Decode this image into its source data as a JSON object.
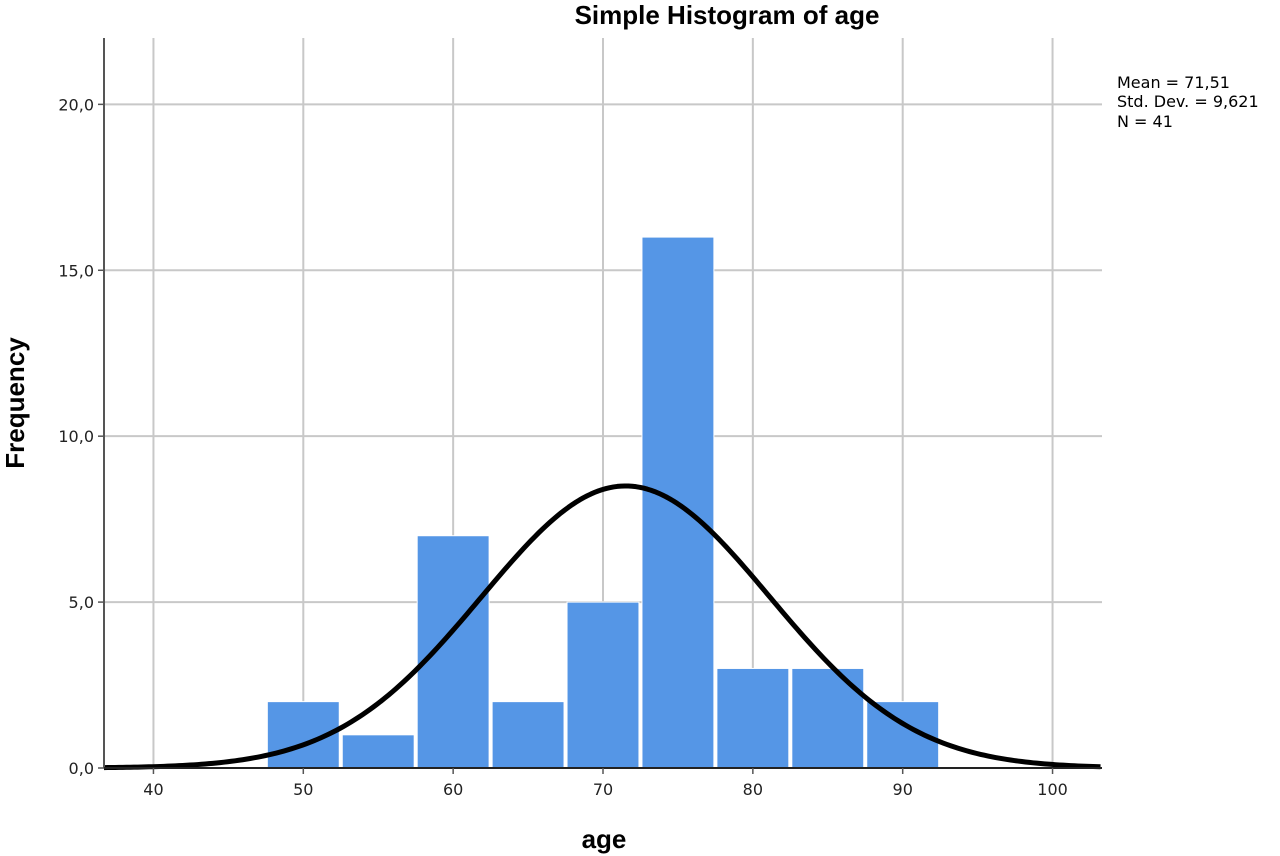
{
  "chart_data": {
    "type": "bar",
    "title": "Simple Histogram of age",
    "xlabel": "age",
    "ylabel": "Frequency",
    "bin_width": 5,
    "bins": [
      {
        "start": 47.5,
        "end": 52.5,
        "value": 2
      },
      {
        "start": 52.5,
        "end": 57.5,
        "value": 1
      },
      {
        "start": 57.5,
        "end": 62.5,
        "value": 7
      },
      {
        "start": 62.5,
        "end": 67.5,
        "value": 2
      },
      {
        "start": 67.5,
        "end": 72.5,
        "value": 5
      },
      {
        "start": 72.5,
        "end": 77.5,
        "value": 16
      },
      {
        "start": 77.5,
        "end": 82.5,
        "value": 3
      },
      {
        "start": 82.5,
        "end": 87.5,
        "value": 3
      },
      {
        "start": 87.5,
        "end": 92.5,
        "value": 2
      }
    ],
    "xlim": [
      36.7,
      103.3
    ],
    "ylim": [
      0,
      22
    ],
    "x_ticks": [
      40,
      50,
      60,
      70,
      80,
      90,
      100
    ],
    "x_tick_labels": [
      "40",
      "50",
      "60",
      "70",
      "80",
      "90",
      "100"
    ],
    "y_ticks": [
      0,
      5,
      10,
      15,
      20
    ],
    "y_tick_labels": [
      "0,0",
      "5,0",
      "10,0",
      "15,0",
      "20,0"
    ],
    "grid": true,
    "normal_curve": {
      "mean": 71.51,
      "std_dev": 9.621,
      "n": 41
    },
    "stats_text": [
      "Mean = 71,51",
      "Std. Dev. = 9,621",
      "N = 41"
    ],
    "bar_color": "#5596e6",
    "curve_color": "#000000"
  }
}
